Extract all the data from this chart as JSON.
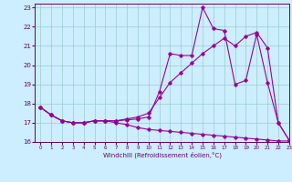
{
  "xlabel": "Windchill (Refroidissement éolien,°C)",
  "bg_color": "#cceeff",
  "grid_color": "#99cccc",
  "line_color": "#990099",
  "xlim": [
    -0.5,
    23
  ],
  "ylim": [
    16,
    23.2
  ],
  "yticks": [
    16,
    17,
    18,
    19,
    20,
    21,
    22,
    23
  ],
  "xticks": [
    0,
    1,
    2,
    3,
    4,
    5,
    6,
    7,
    8,
    9,
    10,
    11,
    12,
    13,
    14,
    15,
    16,
    17,
    18,
    19,
    20,
    21,
    22,
    23
  ],
  "line1_x": [
    0,
    1,
    2,
    3,
    4,
    5,
    6,
    7,
    8,
    9,
    10,
    11,
    12,
    13,
    14,
    15,
    16,
    17,
    18,
    19,
    20,
    21,
    22,
    23
  ],
  "line1_y": [
    17.8,
    17.4,
    17.1,
    17.0,
    17.0,
    17.1,
    17.1,
    17.0,
    16.9,
    16.75,
    16.65,
    16.6,
    16.55,
    16.5,
    16.45,
    16.4,
    16.35,
    16.3,
    16.25,
    16.2,
    16.15,
    16.1,
    16.05,
    16.05
  ],
  "line2_x": [
    0,
    1,
    2,
    3,
    4,
    5,
    6,
    7,
    8,
    9,
    10,
    11,
    12,
    13,
    14,
    15,
    16,
    17,
    18,
    19,
    20,
    21,
    22,
    23
  ],
  "line2_y": [
    17.8,
    17.4,
    17.1,
    17.0,
    17.0,
    17.1,
    17.1,
    17.1,
    17.15,
    17.2,
    17.3,
    18.6,
    20.6,
    20.5,
    20.5,
    23.0,
    21.9,
    21.8,
    19.0,
    19.2,
    21.6,
    19.1,
    17.0,
    16.1
  ],
  "line3_x": [
    0,
    1,
    2,
    3,
    4,
    5,
    6,
    7,
    8,
    9,
    10,
    11,
    12,
    13,
    14,
    15,
    16,
    17,
    18,
    19,
    20,
    21,
    22,
    23
  ],
  "line3_y": [
    17.8,
    17.4,
    17.1,
    17.0,
    17.0,
    17.1,
    17.1,
    17.1,
    17.2,
    17.3,
    17.5,
    18.3,
    19.1,
    19.6,
    20.1,
    20.6,
    21.0,
    21.4,
    21.0,
    21.5,
    21.7,
    20.9,
    17.0,
    16.1
  ]
}
